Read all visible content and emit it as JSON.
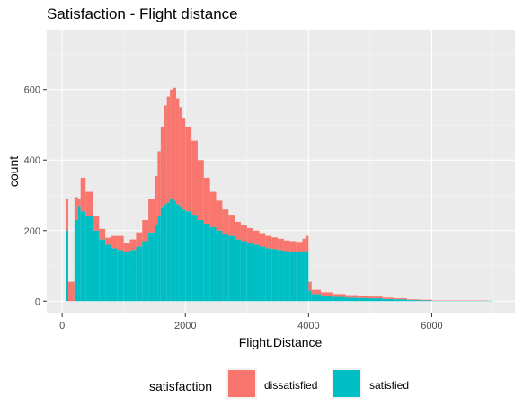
{
  "chart_data": {
    "type": "histogram",
    "title": "Satisfaction - Flight distance",
    "xlabel": "Flight.Distance",
    "ylabel": "count",
    "xlim": [
      -250,
      7350
    ],
    "ylim": [
      -35,
      770
    ],
    "x_ticks": [
      0,
      2000,
      4000,
      6000
    ],
    "y_ticks": [
      0,
      200,
      400,
      600
    ],
    "grid": true,
    "stacked": true,
    "legend": {
      "title": "satisfaction",
      "position": "bottom",
      "entries": [
        "dissatisfied",
        "satisfied"
      ]
    },
    "series": [
      {
        "name": "dissatisfied",
        "color": "#F8766D",
        "x": [
          60,
          100,
          200,
          260,
          300,
          380,
          500,
          600,
          700,
          800,
          900,
          1000,
          1100,
          1200,
          1300,
          1400,
          1500,
          1550,
          1600,
          1650,
          1700,
          1750,
          1800,
          1850,
          1900,
          1950,
          2000,
          2100,
          2200,
          2300,
          2400,
          2500,
          2600,
          2700,
          2800,
          2900,
          3000,
          3100,
          3200,
          3300,
          3400,
          3500,
          3600,
          3700,
          3800,
          3900,
          3950,
          4000,
          4050,
          4200,
          4400,
          4600,
          4800,
          5000,
          5200,
          5400,
          5600,
          5800,
          6000,
          6300,
          6600,
          6900
        ],
        "values": [
          90,
          55,
          65,
          20,
          95,
          70,
          40,
          30,
          20,
          35,
          40,
          25,
          30,
          40,
          60,
          95,
          140,
          185,
          230,
          280,
          300,
          310,
          320,
          300,
          280,
          260,
          240,
          210,
          170,
          130,
          100,
          85,
          70,
          60,
          50,
          45,
          42,
          40,
          38,
          35,
          33,
          32,
          30,
          30,
          28,
          35,
          45,
          25,
          12,
          10,
          8,
          7,
          6,
          5,
          4,
          3,
          2,
          2,
          1,
          1,
          1,
          0
        ]
      },
      {
        "name": "satisfied",
        "color": "#00BFC4",
        "x": [
          60,
          100,
          200,
          260,
          300,
          380,
          500,
          600,
          700,
          800,
          900,
          1000,
          1100,
          1200,
          1300,
          1400,
          1500,
          1550,
          1600,
          1650,
          1700,
          1750,
          1800,
          1850,
          1900,
          1950,
          2000,
          2100,
          2200,
          2300,
          2400,
          2500,
          2600,
          2700,
          2800,
          2900,
          3000,
          3100,
          3200,
          3300,
          3400,
          3500,
          3600,
          3700,
          3800,
          3900,
          3950,
          4000,
          4050,
          4200,
          4400,
          4600,
          4800,
          5000,
          5200,
          5400,
          5600,
          5800,
          6000,
          6300,
          6600,
          6900
        ],
        "values": [
          200,
          0,
          230,
          270,
          255,
          240,
          200,
          175,
          160,
          150,
          145,
          140,
          145,
          155,
          170,
          195,
          215,
          240,
          265,
          275,
          280,
          290,
          285,
          275,
          270,
          260,
          255,
          245,
          230,
          220,
          210,
          200,
          190,
          185,
          175,
          170,
          165,
          160,
          155,
          150,
          148,
          145,
          142,
          140,
          140,
          142,
          140,
          30,
          20,
          15,
          12,
          10,
          9,
          8,
          6,
          5,
          3,
          2,
          1,
          1,
          1,
          1
        ]
      }
    ]
  }
}
